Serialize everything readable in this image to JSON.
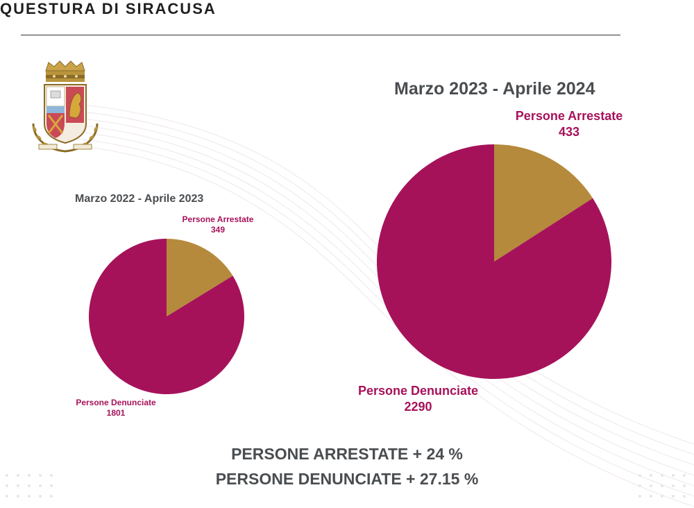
{
  "header": {
    "title": "QUESTURA DI SIRACUSA"
  },
  "emblem": {
    "icon": "polizia-di-stato-crest-icon"
  },
  "colors": {
    "denunciate": "#a6125a",
    "arrestate": "#b58a3c",
    "title_text": "#4a4d50"
  },
  "chart_data": [
    {
      "type": "pie",
      "title": "Marzo 2022 - Aprile 2023",
      "slices": [
        {
          "label": "Persone Arrestate",
          "value": 349
        },
        {
          "label": "Persone Denunciate",
          "value": 1801
        }
      ]
    },
    {
      "type": "pie",
      "title": "Marzo 2023 - Aprile 2024",
      "slices": [
        {
          "label": "Persone Arrestate",
          "value": 433
        },
        {
          "label": "Persone Denunciate",
          "value": 2290
        }
      ]
    }
  ],
  "summary": {
    "line1": "PERSONE ARRESTATE + 24 %",
    "line2": "PERSONE DENUNCIATE + 27.15 %"
  }
}
